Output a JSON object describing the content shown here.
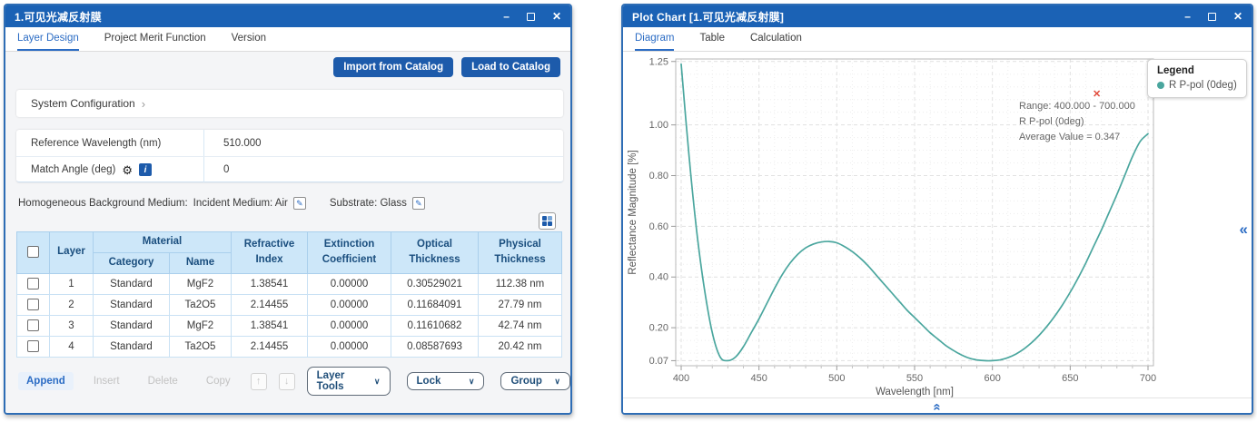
{
  "icons": {
    "minimize": "–",
    "close": "✕",
    "chevron_right": "›",
    "gear": "⚙",
    "info_letter": "i",
    "edit": "✎",
    "dropdown": "∨",
    "up_arrow": "↑",
    "down_arrow": "↓",
    "collapse": "«",
    "red_x": "✕"
  },
  "left_window": {
    "title": "1.可见光减反射膜",
    "tabs": [
      "Layer Design",
      "Project Merit Function",
      "Version"
    ],
    "active_tab": "Layer Design",
    "buttons": {
      "import": "Import from Catalog",
      "load": "Load to Catalog"
    },
    "system_configuration": {
      "label": "System Configuration"
    },
    "params": {
      "row1_label": "Reference Wavelength (nm)",
      "row1_value": "510.000",
      "row2_label": "Match Angle (deg)",
      "row2_value": "0"
    },
    "background_medium": {
      "label": "Homogeneous Background Medium:",
      "incident": "Incident Medium: Air",
      "substrate": "Substrate: Glass"
    },
    "table": {
      "header": {
        "layer": "Layer",
        "material": "Material",
        "category": "Category",
        "name": "Name",
        "refractive": "Refractive Index",
        "extinction": "Extinction Coefficient",
        "optical": "Optical Thickness",
        "physical": "Physical Thickness"
      },
      "rows": [
        [
          "1",
          "Standard",
          "MgF2",
          "1.38541",
          "0.00000",
          "0.30529021",
          "112.38 nm"
        ],
        [
          "2",
          "Standard",
          "Ta2O5",
          "2.14455",
          "0.00000",
          "0.11684091",
          "27.79 nm"
        ],
        [
          "3",
          "Standard",
          "MgF2",
          "1.38541",
          "0.00000",
          "0.11610682",
          "42.74 nm"
        ],
        [
          "4",
          "Standard",
          "Ta2O5",
          "2.14455",
          "0.00000",
          "0.08587693",
          "20.42 nm"
        ]
      ]
    },
    "footer": {
      "append": "Append",
      "insert": "Insert",
      "delete": "Delete",
      "copy": "Copy",
      "layer_tools": "Layer Tools",
      "lock": "Lock",
      "group": "Group"
    }
  },
  "right_window": {
    "title": "Plot Chart [1.可见光减反射膜]",
    "tabs": [
      "Diagram",
      "Table",
      "Calculation"
    ],
    "active_tab": "Diagram",
    "legend": {
      "title": "Legend",
      "series_label": "R P-pol (0deg)",
      "color": "#4aa69e"
    },
    "annotation": {
      "line1": "Range: 400.000 - 700.000",
      "line2": "R P-pol (0deg)",
      "line3": "Average Value = 0.347"
    }
  },
  "chart_data": {
    "type": "line",
    "title": "",
    "xlabel": "Wavelength [nm]",
    "ylabel": "Reflectance Magnitude [%]",
    "xlim": [
      396.5,
      703.5
    ],
    "ylim": [
      0.05,
      1.26
    ],
    "xticks": [
      400,
      450,
      500,
      550,
      600,
      650,
      700
    ],
    "yticks": [
      0.07,
      0.2,
      0.4,
      0.6,
      0.8,
      1.0,
      1.25
    ],
    "yticklabels": [
      "0.07",
      "0.20",
      "0.40",
      "0.60",
      "0.80",
      "1.00",
      "1.25"
    ],
    "grid": true,
    "legend_position": "top-right",
    "series": [
      {
        "name": "R P-pol (0deg)",
        "color": "#4aa69e",
        "x": [
          400,
          405,
          410,
          415,
          420,
          425,
          430,
          435,
          440,
          445,
          450,
          455,
          460,
          465,
          470,
          475,
          480,
          485,
          490,
          495,
          500,
          505,
          510,
          515,
          520,
          525,
          530,
          535,
          540,
          545,
          550,
          555,
          560,
          565,
          570,
          575,
          580,
          585,
          590,
          595,
          600,
          605,
          610,
          615,
          620,
          625,
          630,
          635,
          640,
          645,
          650,
          655,
          660,
          665,
          670,
          675,
          680,
          685,
          690,
          695,
          700
        ],
        "y": [
          1.24,
          0.88,
          0.58,
          0.35,
          0.18,
          0.085,
          0.07,
          0.085,
          0.125,
          0.18,
          0.235,
          0.295,
          0.355,
          0.41,
          0.455,
          0.49,
          0.515,
          0.53,
          0.538,
          0.54,
          0.535,
          0.52,
          0.5,
          0.475,
          0.445,
          0.41,
          0.375,
          0.34,
          0.305,
          0.27,
          0.24,
          0.21,
          0.18,
          0.155,
          0.13,
          0.11,
          0.093,
          0.08,
          0.073,
          0.07,
          0.07,
          0.073,
          0.082,
          0.096,
          0.115,
          0.14,
          0.17,
          0.205,
          0.245,
          0.29,
          0.34,
          0.395,
          0.455,
          0.52,
          0.585,
          0.655,
          0.725,
          0.8,
          0.875,
          0.935,
          0.965
        ],
        "average_value": 0.347,
        "range": [
          400.0,
          700.0
        ]
      }
    ]
  }
}
